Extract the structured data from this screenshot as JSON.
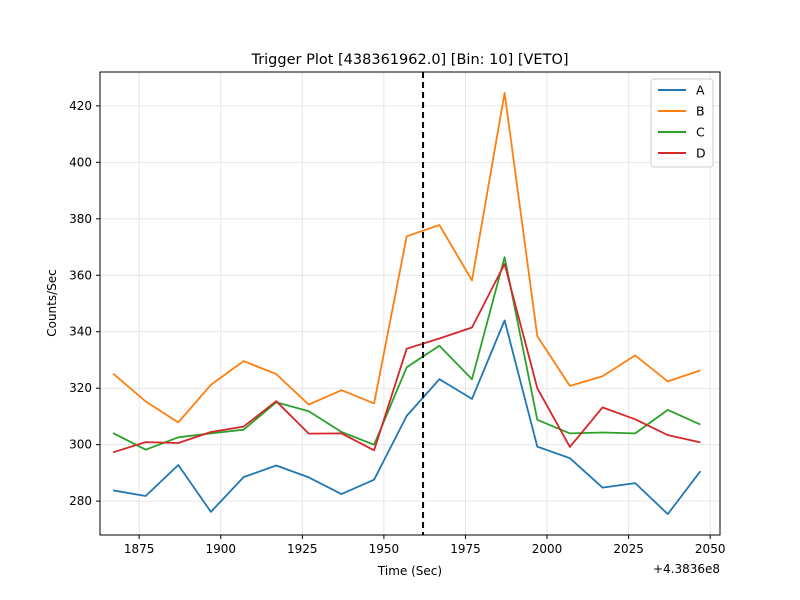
{
  "chart_data": {
    "type": "line",
    "title": "Trigger Plot [438361962.0] [Bin: 10] [VETO]",
    "xlabel": "Time (Sec)",
    "ylabel": "Counts/Sec",
    "x_offset_label": "+4.3836e8",
    "xlim": [
      438361863,
      438362053
    ],
    "ylim": [
      268,
      432
    ],
    "grid": true,
    "legend_position": "top-right",
    "x_ticks": [
      {
        "value": 438361875,
        "label": "1875"
      },
      {
        "value": 438361900,
        "label": "1900"
      },
      {
        "value": 438361925,
        "label": "1925"
      },
      {
        "value": 438361950,
        "label": "1950"
      },
      {
        "value": 438361975,
        "label": "1975"
      },
      {
        "value": 438362000,
        "label": "2000"
      },
      {
        "value": 438362025,
        "label": "2025"
      },
      {
        "value": 438362050,
        "label": "2050"
      }
    ],
    "y_ticks": [
      {
        "value": 280,
        "label": "280"
      },
      {
        "value": 300,
        "label": "300"
      },
      {
        "value": 320,
        "label": "320"
      },
      {
        "value": 340,
        "label": "340"
      },
      {
        "value": 360,
        "label": "360"
      },
      {
        "value": 380,
        "label": "380"
      },
      {
        "value": 400,
        "label": "400"
      },
      {
        "value": 420,
        "label": "420"
      }
    ],
    "trigger_time": 438361962.0,
    "x": [
      438361867,
      438361877,
      438361887,
      438361897,
      438361907,
      438361917,
      438361927,
      438361937,
      438361947,
      438361957,
      438361967,
      438361977,
      438361987,
      438361997,
      438362007,
      438362017,
      438362027,
      438362037,
      438362047
    ],
    "series": [
      {
        "name": "A",
        "color": "#1f77b4",
        "values": [
          283.8,
          281.8,
          292.8,
          276.2,
          288.5,
          292.6,
          288.4,
          282.5,
          287.6,
          310.2,
          323.2,
          316.2,
          344.0,
          299.3,
          295.2,
          284.8,
          286.4,
          275.4,
          290.6
        ]
      },
      {
        "name": "B",
        "color": "#ff7f0e",
        "values": [
          325.2,
          315.3,
          307.9,
          321.2,
          329.6,
          325.0,
          314.2,
          319.3,
          314.6,
          373.8,
          377.8,
          358.2,
          424.6,
          338.4,
          320.8,
          324.2,
          331.6,
          322.4,
          326.3
        ]
      },
      {
        "name": "C",
        "color": "#2ca02c",
        "values": [
          304.1,
          298.2,
          302.6,
          304.0,
          305.3,
          315.0,
          311.8,
          304.5,
          300.0,
          327.4,
          335.0,
          323.2,
          366.4,
          308.8,
          304.0,
          304.3,
          304.0,
          312.3,
          307.1
        ]
      },
      {
        "name": "D",
        "color": "#d62728",
        "values": [
          297.3,
          300.9,
          300.6,
          304.5,
          306.4,
          315.4,
          303.9,
          304.0,
          298.0,
          334.0,
          337.6,
          341.5,
          364.0,
          320.0,
          299.2,
          313.2,
          309.0,
          303.4,
          300.8
        ]
      }
    ]
  }
}
